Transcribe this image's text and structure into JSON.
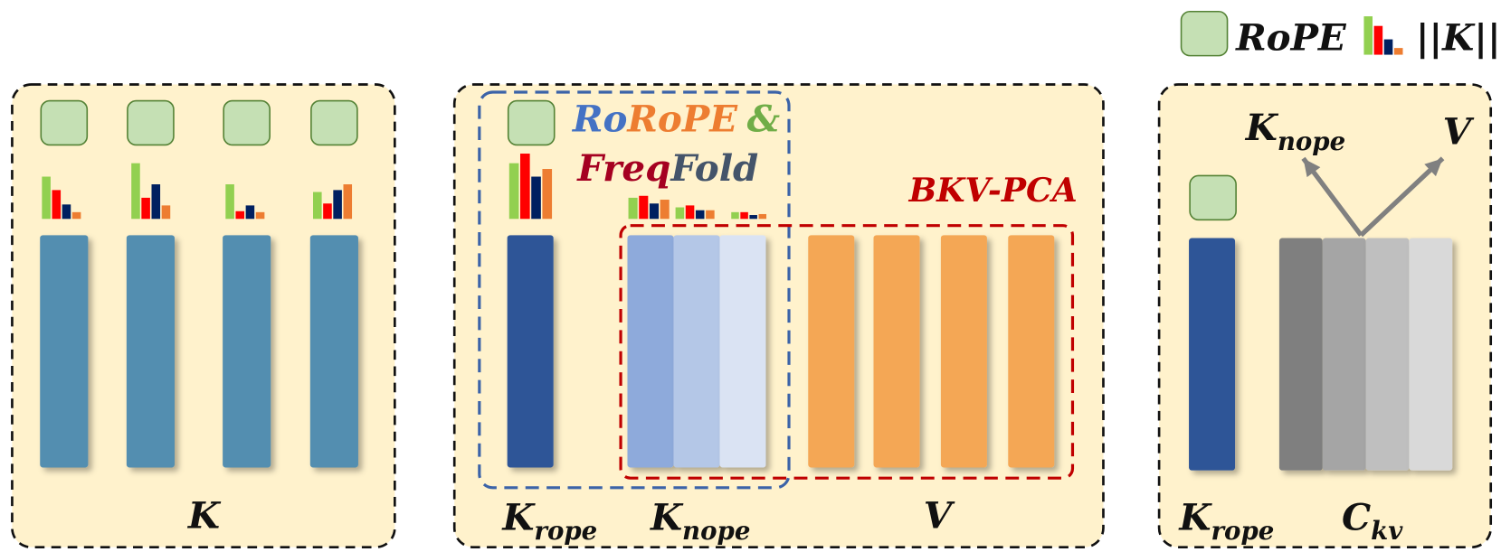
{
  "legend": {
    "rope": "RoPE",
    "norm": "||K||"
  },
  "panels": [
    {
      "label": "K"
    },
    {
      "method": {
        "ro": "Ro",
        "rope": "RoPE",
        "amp": "&",
        "freq": "Freq",
        "fold": "Fold"
      },
      "pca": "BKV-PCA",
      "labels": [
        {
          "main": "K",
          "sub": "rope"
        },
        {
          "main": "K",
          "sub": "nope"
        },
        {
          "main": "V"
        }
      ]
    },
    {
      "arrows": [
        {
          "main": "K",
          "sub": "nope"
        },
        {
          "main": "V"
        }
      ],
      "labels": [
        {
          "main": "K",
          "sub": "rope"
        },
        {
          "main": "C",
          "sub": "kv"
        }
      ]
    }
  ]
}
